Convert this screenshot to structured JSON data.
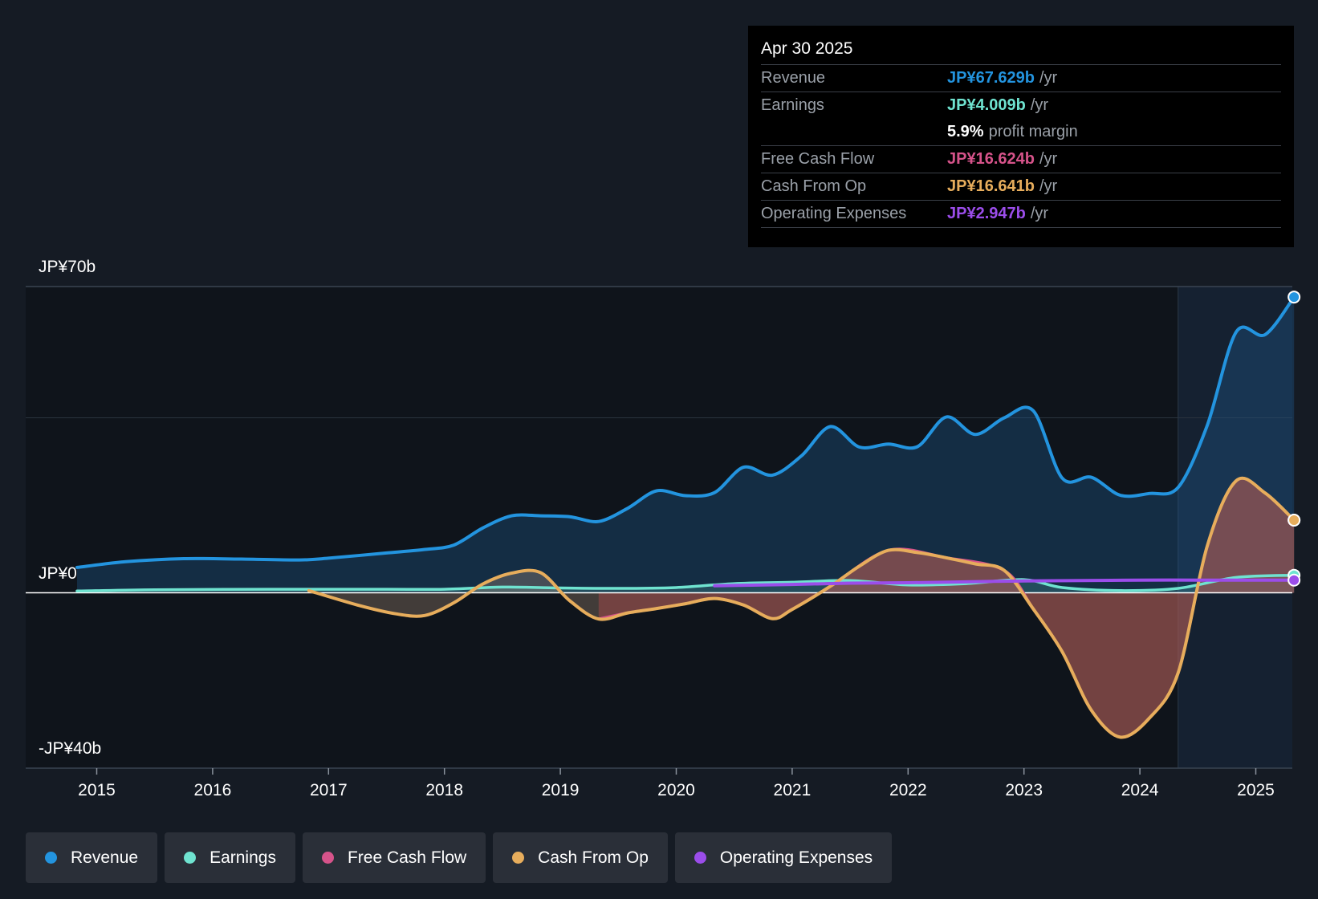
{
  "tooltip": {
    "date": "Apr 30 2025",
    "rows": [
      {
        "label": "Revenue",
        "value": "JP¥67.629b",
        "unit": "/yr",
        "color": "#2394df"
      },
      {
        "label": "Earnings",
        "value": "JP¥4.009b",
        "unit": "/yr",
        "color": "#6fe3d0"
      },
      {
        "label": "",
        "value": "5.9%",
        "unit": "profit margin",
        "color": "#ffffff"
      },
      {
        "label": "Free Cash Flow",
        "value": "JP¥16.624b",
        "unit": "/yr",
        "color": "#d6538a"
      },
      {
        "label": "Cash From Op",
        "value": "JP¥16.641b",
        "unit": "/yr",
        "color": "#e7ad5c"
      },
      {
        "label": "Operating Expenses",
        "value": "JP¥2.947b",
        "unit": "/yr",
        "color": "#9b4dea"
      }
    ]
  },
  "chart_data": {
    "type": "line",
    "title": "",
    "ylim": [
      -40,
      70
    ],
    "y_unit": "JP¥ billions",
    "y_tick_labels": {
      "top": "JP¥70b",
      "zero": "JP¥0",
      "bottom": "-JP¥40b"
    },
    "x_ticks": [
      "2015",
      "2016",
      "2017",
      "2018",
      "2019",
      "2020",
      "2021",
      "2022",
      "2023",
      "2024",
      "2025"
    ],
    "forecast_start": 2024.33,
    "series": [
      {
        "name": "Revenue",
        "color": "#2394df",
        "fill": true,
        "x": [
          2014.83,
          2015.25,
          2015.75,
          2016.25,
          2016.75,
          2017.0,
          2017.5,
          2017.83,
          2018.08,
          2018.33,
          2018.58,
          2018.83,
          2019.08,
          2019.33,
          2019.58,
          2019.83,
          2020.08,
          2020.33,
          2020.58,
          2020.83,
          2021.08,
          2021.33,
          2021.58,
          2021.83,
          2022.08,
          2022.33,
          2022.58,
          2022.83,
          2023.08,
          2023.33,
          2023.58,
          2023.83,
          2024.08,
          2024.33,
          2024.58,
          2024.83,
          2025.08,
          2025.33
        ],
        "values": [
          5.8,
          7.1,
          7.8,
          7.7,
          7.5,
          7.9,
          9.1,
          9.9,
          10.9,
          14.8,
          17.6,
          17.6,
          17.4,
          16.3,
          19.3,
          23.3,
          22.2,
          22.9,
          28.7,
          26.9,
          31.3,
          38.0,
          33.3,
          34.0,
          33.4,
          40.2,
          36.2,
          40.0,
          41.6,
          26.2,
          26.4,
          22.3,
          22.7,
          24.1,
          38.2,
          59.6,
          59.0,
          67.6
        ]
      },
      {
        "name": "Earnings",
        "color": "#6fe3d0",
        "fill": true,
        "x": [
          2014.83,
          2015.5,
          2016.5,
          2017.5,
          2018.0,
          2018.5,
          2019.0,
          2019.5,
          2020.0,
          2020.5,
          2021.0,
          2021.5,
          2022.0,
          2022.5,
          2023.0,
          2023.33,
          2023.83,
          2024.33,
          2024.83,
          2025.33
        ],
        "values": [
          0.4,
          0.7,
          0.8,
          0.8,
          0.8,
          1.3,
          1.1,
          1.0,
          1.2,
          2.1,
          2.4,
          2.8,
          1.8,
          2.1,
          3.0,
          1.2,
          0.5,
          1.0,
          3.5,
          4.0
        ]
      },
      {
        "name": "Free Cash Flow",
        "color": "#d6538a",
        "fill": true,
        "x": [
          2019.33,
          2019.58,
          2019.83,
          2020.08,
          2020.33,
          2020.58,
          2020.83,
          2021.0,
          2021.33,
          2021.83,
          2022.33,
          2022.83,
          2023.08,
          2023.33,
          2023.58,
          2023.83,
          2024.08,
          2024.33,
          2024.58,
          2024.83,
          2025.08,
          2025.33
        ],
        "values": [
          -6.0,
          -4.6,
          -3.6,
          -2.5,
          -1.3,
          -2.8,
          -5.9,
          -3.8,
          1.5,
          9.7,
          8.0,
          5.1,
          -3.7,
          -13.5,
          -26.8,
          -33.0,
          -28.7,
          -18.3,
          10.6,
          25.6,
          22.8,
          16.6
        ]
      },
      {
        "name": "Cash From Op",
        "color": "#e7ad5c",
        "fill": true,
        "x": [
          2016.83,
          2017.25,
          2017.58,
          2017.83,
          2018.08,
          2018.33,
          2018.58,
          2018.83,
          2019.08,
          2019.33,
          2019.58,
          2019.83,
          2020.08,
          2020.33,
          2020.58,
          2020.83,
          2021.0,
          2021.33,
          2021.58,
          2021.83,
          2022.08,
          2022.33,
          2022.58,
          2022.83,
          2023.08,
          2023.33,
          2023.58,
          2023.83,
          2024.08,
          2024.33,
          2024.58,
          2024.83,
          2025.08,
          2025.33
        ],
        "values": [
          0.5,
          -2.8,
          -4.8,
          -5.2,
          -2.3,
          2.0,
          4.5,
          4.6,
          -1.8,
          -6.0,
          -4.6,
          -3.6,
          -2.5,
          -1.3,
          -2.8,
          -5.9,
          -3.8,
          1.5,
          6.1,
          9.7,
          9.2,
          8.0,
          6.6,
          5.1,
          -3.7,
          -13.5,
          -26.8,
          -33.0,
          -28.7,
          -18.3,
          10.6,
          25.6,
          22.8,
          16.6
        ]
      },
      {
        "name": "Operating Expenses",
        "color": "#9b4dea",
        "fill": false,
        "x": [
          2020.33,
          2021.0,
          2021.5,
          2022.0,
          2022.5,
          2023.0,
          2023.5,
          2024.0,
          2024.5,
          2025.0,
          2025.33
        ],
        "values": [
          1.6,
          1.9,
          2.2,
          2.3,
          2.5,
          2.7,
          2.8,
          2.9,
          2.9,
          2.9,
          2.9
        ]
      }
    ]
  },
  "legend": [
    {
      "label": "Revenue",
      "color": "#2394df"
    },
    {
      "label": "Earnings",
      "color": "#6fe3d0"
    },
    {
      "label": "Free Cash Flow",
      "color": "#d6538a"
    },
    {
      "label": "Cash From Op",
      "color": "#e7ad5c"
    },
    {
      "label": "Operating Expenses",
      "color": "#9b4dea"
    }
  ]
}
